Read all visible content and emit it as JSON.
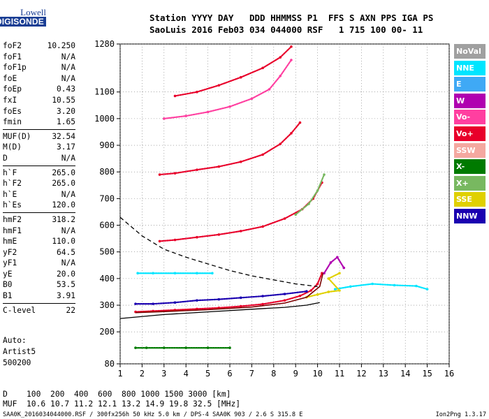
{
  "logo": {
    "line1": "Lowell",
    "line2": "DIGISONDE"
  },
  "header": {
    "line1": "Station YYYY DAY   DDD HHMMSS P1  FFS S AXN PPS IGA PS",
    "line2": "SaoLuis 2016 Feb03 034 044000 RSF   1 715 100 00- 11"
  },
  "params": [
    {
      "name": "foF2",
      "value": "10.250"
    },
    {
      "name": "foF1",
      "value": "N/A"
    },
    {
      "name": "foF1p",
      "value": "N/A"
    },
    {
      "name": "foE",
      "value": "N/A"
    },
    {
      "name": "foEp",
      "value": "0.43"
    },
    {
      "name": "fxI",
      "value": "10.55"
    },
    {
      "name": "foEs",
      "value": "3.20"
    },
    {
      "name": "fmin",
      "value": "1.65"
    },
    {
      "sep": true
    },
    {
      "name": "MUF(D)",
      "value": "32.54"
    },
    {
      "name": "M(D)",
      "value": "3.17"
    },
    {
      "name": "D",
      "value": "N/A"
    },
    {
      "sep": true
    },
    {
      "name": "h`F",
      "value": "265.0"
    },
    {
      "name": "h`F2",
      "value": "265.0"
    },
    {
      "name": "h`E",
      "value": "N/A"
    },
    {
      "name": "h`Es",
      "value": "120.0"
    },
    {
      "sep": true
    },
    {
      "name": "hmF2",
      "value": "318.2"
    },
    {
      "name": "hmF1",
      "value": "N/A"
    },
    {
      "name": "hmE",
      "value": "110.0"
    },
    {
      "name": "yF2",
      "value": "64.5"
    },
    {
      "name": "yF1",
      "value": "N/A"
    },
    {
      "name": "yE",
      "value": "20.0"
    },
    {
      "name": "B0",
      "value": "53.5"
    },
    {
      "name": "B1",
      "value": "3.91"
    },
    {
      "sep": true
    },
    {
      "name": "C-level",
      "value": "22"
    }
  ],
  "auto": {
    "l1": "Auto:",
    "l2": "Artist5",
    "l3": "500200"
  },
  "legend": [
    {
      "label": "NoVal",
      "color": "#a0a0a0"
    },
    {
      "label": "NNE",
      "color": "#00e5ff"
    },
    {
      "label": "E",
      "color": "#3fa9f5"
    },
    {
      "label": "W",
      "color": "#b000b0"
    },
    {
      "label": "Vo-",
      "color": "#ff3fa0"
    },
    {
      "label": "Vo+",
      "color": "#e8002a"
    },
    {
      "label": "SSW",
      "color": "#f4a8a0"
    },
    {
      "label": "X-",
      "color": "#007a00"
    },
    {
      "label": "X+",
      "color": "#78b860"
    },
    {
      "label": "SSE",
      "color": "#e0d000"
    },
    {
      "label": "NNW",
      "color": "#1a00b0"
    }
  ],
  "footer": {
    "d_line": "D    100  200  400  600  800 1000 1500 3000 [km]",
    "muf_line": "MUF  10.6 10.7 11.2 12.1 13.2 14.9 19.8 32.5 [MHz]",
    "file_line": "SAA0K_2016034044000.RSF / 300fx256h 50 kHz 5.0 km / DPS-4 SAA0K 903 / 2.6 S 315.8 E",
    "version": "Ion2Png 1.3.17"
  },
  "chart_data": {
    "type": "scatter",
    "xlim": [
      1,
      16
    ],
    "ylim": [
      80,
      1280
    ],
    "x_ticks": [
      1,
      2,
      3,
      4,
      5,
      6,
      7,
      8,
      9,
      10,
      11,
      12,
      13,
      14,
      15,
      16
    ],
    "x_tick_labels": [
      "1",
      "2",
      "3",
      "4",
      "5",
      "6",
      "7",
      "8",
      "9",
      "10",
      "11",
      "12",
      "13",
      "14",
      "15",
      "16"
    ],
    "y_ticks": [
      80,
      200,
      300,
      400,
      500,
      600,
      700,
      800,
      900,
      1000,
      1100,
      1280
    ],
    "y_tick_labels": [
      "80",
      "200",
      "300",
      "400",
      "500",
      "600",
      "700",
      "800",
      "900",
      "1000",
      "1100",
      "1280"
    ],
    "grid": "dotted",
    "traces": [
      {
        "color": "#e8002a",
        "points": [
          [
            1.7,
            275
          ],
          [
            2.5,
            278
          ],
          [
            3.5,
            282
          ],
          [
            4.5,
            286
          ],
          [
            5.5,
            290
          ],
          [
            6.5,
            296
          ],
          [
            7.5,
            304
          ],
          [
            8.5,
            318
          ],
          [
            9.2,
            335
          ],
          [
            9.7,
            355
          ],
          [
            10.0,
            380
          ],
          [
            10.2,
            420
          ]
        ]
      },
      {
        "color": "#1a00b0",
        "points": [
          [
            1.7,
            305
          ],
          [
            2.5,
            305
          ],
          [
            3.5,
            310
          ],
          [
            4.5,
            318
          ],
          [
            5.5,
            322
          ],
          [
            6.5,
            328
          ],
          [
            7.5,
            334
          ],
          [
            8.5,
            342
          ],
          [
            9.5,
            352
          ]
        ]
      },
      {
        "color": "#e8002a",
        "points": [
          [
            2.8,
            540
          ],
          [
            3.5,
            545
          ],
          [
            4.5,
            555
          ],
          [
            5.5,
            565
          ],
          [
            6.5,
            578
          ],
          [
            7.5,
            595
          ],
          [
            8.5,
            625
          ],
          [
            9.3,
            660
          ],
          [
            9.8,
            700
          ],
          [
            10.2,
            760
          ]
        ]
      },
      {
        "color": "#78b860",
        "points": [
          [
            9.0,
            640
          ],
          [
            9.6,
            680
          ],
          [
            10.0,
            730
          ],
          [
            10.3,
            790
          ]
        ]
      },
      {
        "color": "#e8002a",
        "points": [
          [
            2.8,
            790
          ],
          [
            3.5,
            795
          ],
          [
            4.5,
            808
          ],
          [
            5.5,
            820
          ],
          [
            6.5,
            838
          ],
          [
            7.5,
            865
          ],
          [
            8.3,
            905
          ],
          [
            8.8,
            945
          ],
          [
            9.2,
            985
          ]
        ]
      },
      {
        "color": "#ff3fa0",
        "points": [
          [
            3.0,
            1000
          ],
          [
            4.0,
            1010
          ],
          [
            5.0,
            1025
          ],
          [
            6.0,
            1045
          ],
          [
            7.0,
            1075
          ],
          [
            7.8,
            1110
          ],
          [
            8.3,
            1160
          ],
          [
            8.8,
            1220
          ]
        ]
      },
      {
        "color": "#e8002a",
        "points": [
          [
            3.5,
            1085
          ],
          [
            4.5,
            1100
          ],
          [
            5.5,
            1125
          ],
          [
            6.5,
            1155
          ],
          [
            7.5,
            1190
          ],
          [
            8.3,
            1230
          ],
          [
            8.8,
            1270
          ]
        ]
      },
      {
        "color": "#00e5ff",
        "points": [
          [
            10.8,
            360
          ],
          [
            11.5,
            370
          ],
          [
            12.5,
            380
          ],
          [
            13.5,
            375
          ],
          [
            14.5,
            372
          ],
          [
            15.0,
            360
          ]
        ]
      },
      {
        "color": "#e0d000",
        "points": [
          [
            9.5,
            330
          ],
          [
            10.0,
            340
          ],
          [
            10.5,
            350
          ],
          [
            11.0,
            355
          ],
          [
            10.5,
            400
          ],
          [
            11.0,
            420
          ]
        ]
      },
      {
        "color": "#b000b0",
        "points": [
          [
            10.3,
            420
          ],
          [
            10.6,
            460
          ],
          [
            10.9,
            480
          ],
          [
            11.2,
            440
          ]
        ]
      },
      {
        "color": "#007a00",
        "points": [
          [
            1.7,
            140
          ],
          [
            2.2,
            140
          ],
          [
            3.0,
            140
          ],
          [
            4.0,
            140
          ],
          [
            5.0,
            140
          ],
          [
            6.0,
            140
          ]
        ]
      },
      {
        "color": "#00e5ff",
        "points": [
          [
            1.8,
            420
          ],
          [
            2.5,
            420
          ],
          [
            3.5,
            420
          ],
          [
            4.5,
            420
          ],
          [
            5.2,
            420
          ]
        ]
      }
    ],
    "lines": [
      {
        "style": "solid",
        "points": [
          [
            1.0,
            250
          ],
          [
            3.0,
            265
          ],
          [
            5.0,
            275
          ],
          [
            7.0,
            285
          ],
          [
            8.5,
            292
          ],
          [
            9.5,
            300
          ],
          [
            10.1,
            310
          ]
        ]
      },
      {
        "style": "dashed",
        "points": [
          [
            1.0,
            630
          ],
          [
            2.0,
            560
          ],
          [
            3.0,
            510
          ],
          [
            4.0,
            480
          ],
          [
            5.0,
            455
          ],
          [
            6.0,
            430
          ],
          [
            7.0,
            410
          ],
          [
            8.0,
            395
          ],
          [
            9.0,
            380
          ],
          [
            10.0,
            370
          ]
        ]
      },
      {
        "style": "solid-red",
        "points": [
          [
            1.7,
            272
          ],
          [
            3.0,
            276
          ],
          [
            5.0,
            283
          ],
          [
            7.0,
            293
          ],
          [
            8.5,
            308
          ],
          [
            9.5,
            330
          ],
          [
            10.1,
            370
          ],
          [
            10.25,
            420
          ]
        ]
      }
    ]
  }
}
